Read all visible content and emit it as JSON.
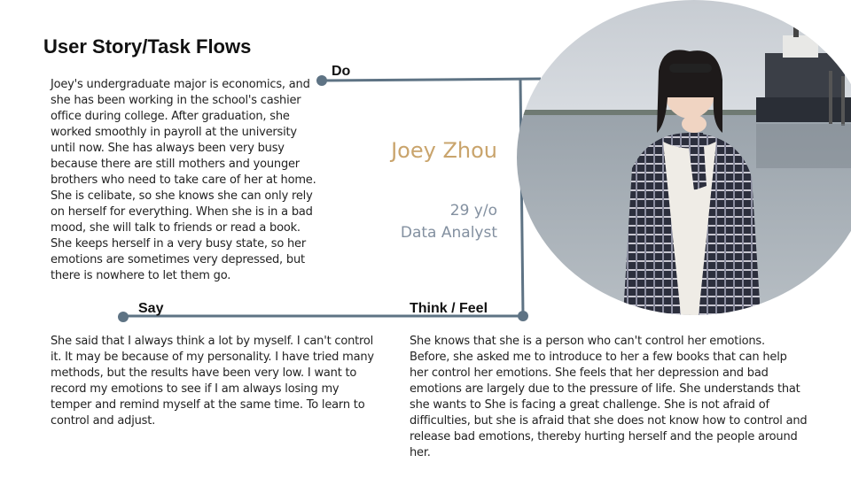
{
  "title": "User Story/Task Flows",
  "bio": "Joey's undergraduate major is economics, and she has been working in the school's cashier office during college. After graduation, she worked smoothly in payroll at the university until now. She has always been very busy because there are still mothers and younger brothers who need to take care of her at home. She is celibate, so she knows she can only rely on herself for everything. When she is in a bad mood, she will talk to friends or read a book. She keeps herself in a very busy state, so her emotions are sometimes very depressed, but there is nowhere to let them go.",
  "persona": {
    "name": "Joey Zhou",
    "age": "29 y/o",
    "job": "Data Analyst"
  },
  "sections": {
    "do": "Do",
    "say": "Say",
    "think": "Think / Feel"
  },
  "say_text": "She said that I always think a lot by myself. I can't control it. It may be because of my personality. I have tried many methods, but the results have been very low. I want to record my emotions to see if I am always losing my temper and remind myself at the same time. To learn to control and adjust.",
  "think_text": "She knows that she is a person who can't control her emotions. Before, she asked me to introduce to her a few books that can help her control her emotions. She feels that her depression and bad emotions are largely due to the pressure of life. She understands that she wants to She is facing a great challenge. She is not afraid of difficulties, but she is afraid that she does not know how to control and release bad emotions, thereby hurting herself and the people around her.",
  "colors": {
    "line": "#5e7384",
    "name": "#c9a46c",
    "meta": "#8390a0"
  }
}
